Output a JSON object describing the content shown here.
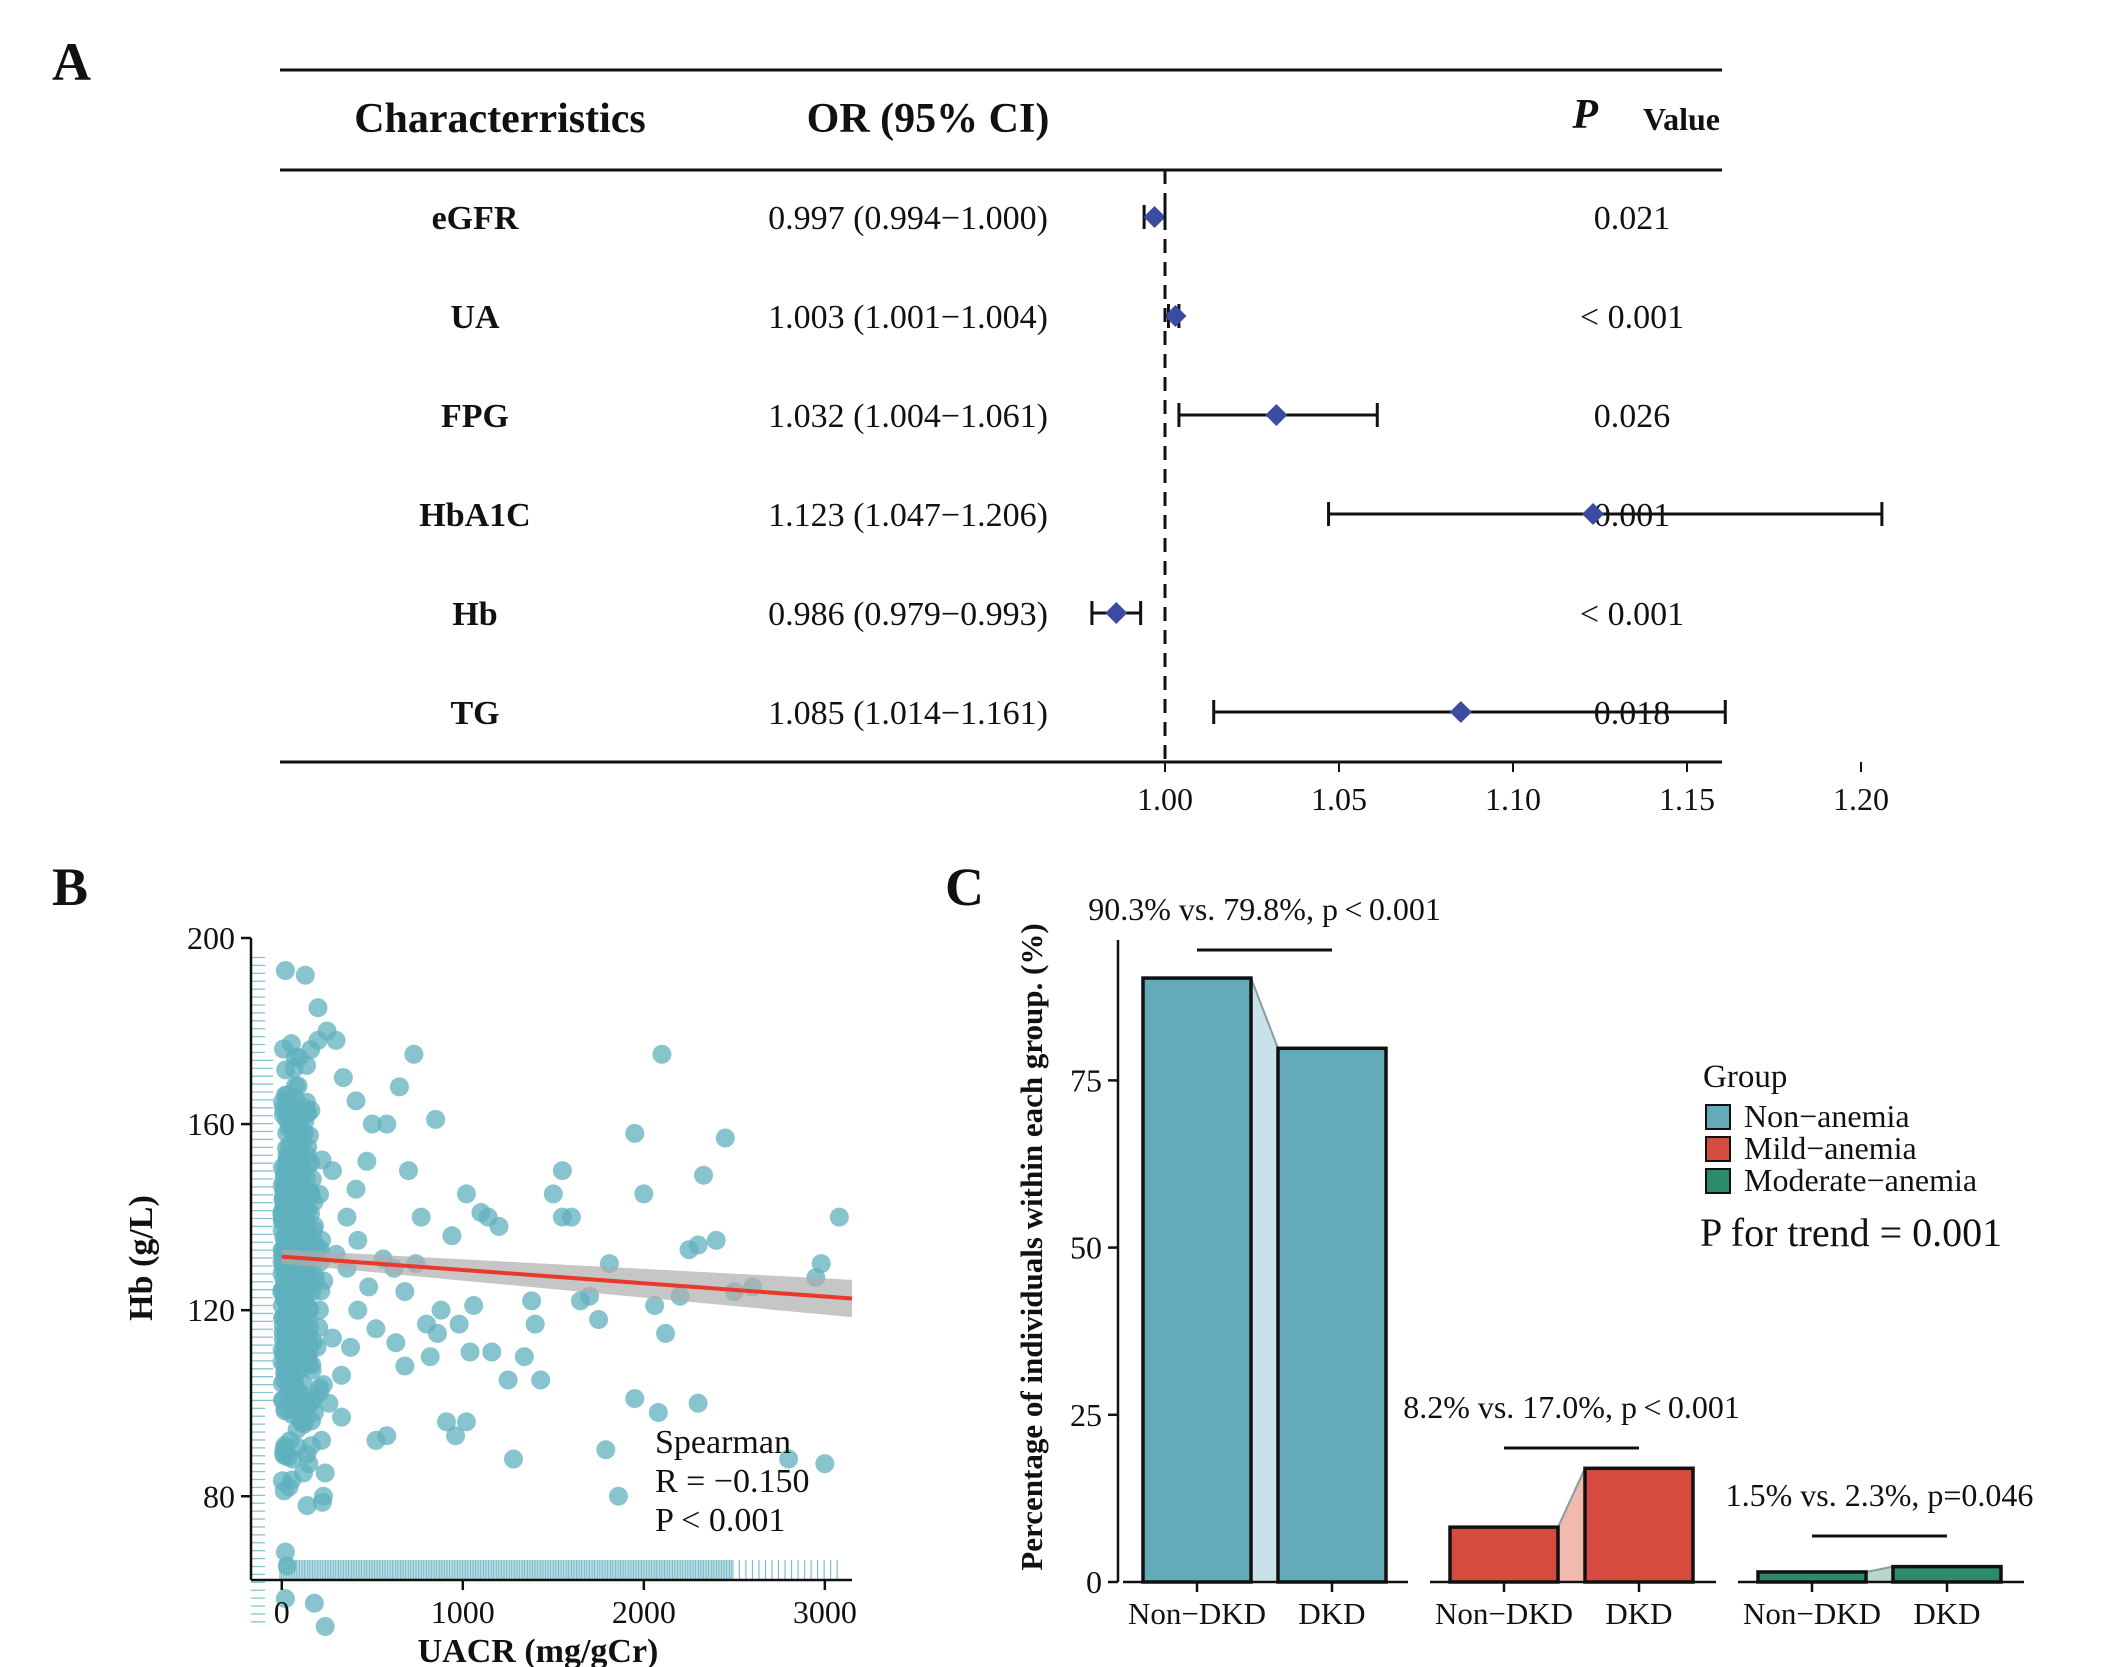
{
  "panels": {
    "a": "A",
    "b": "B",
    "c": "C"
  },
  "colors": {
    "axis": "#111111",
    "diamond": "#3B4BA0",
    "scatter": "#5FB0BE",
    "fit_line": "#E8392B",
    "ci_band": "#AEAEAE",
    "non_anemia": "#63ABBA",
    "mild_anemia": "#D64B3F",
    "moderate_anemia": "#2E8B6A",
    "connector_non": "#C9E1E8",
    "connector_mild": "#F2B9AE",
    "connector_mod": "#B9D6C8"
  },
  "chart_data": [
    {
      "type": "forest",
      "headers": {
        "characteristics": "Characterristics",
        "or": "OR (95% CI)",
        "p_italic": "P",
        "p_rest": "Value"
      },
      "reference_line": 1.0,
      "xlim": [
        0.97,
        1.245
      ],
      "x_ticks": [
        1.0,
        1.05,
        1.1,
        1.15,
        1.2
      ],
      "x_tick_labels": [
        "1.00",
        "1.05",
        "1.10",
        "1.15",
        "1.20"
      ],
      "rows": [
        {
          "name": "eGFR",
          "or_text": "0.997 (0.994−1.000)",
          "or": 0.997,
          "lo": 0.994,
          "hi": 1.0,
          "p": "0.021"
        },
        {
          "name": "UA",
          "or_text": "1.003 (1.001−1.004)",
          "or": 1.003,
          "lo": 1.001,
          "hi": 1.004,
          "p": "< 0.001"
        },
        {
          "name": "FPG",
          "or_text": "1.032 (1.004−1.061)",
          "or": 1.032,
          "lo": 1.004,
          "hi": 1.061,
          "p": "0.026"
        },
        {
          "name": "HbA1C",
          "or_text": "1.123 (1.047−1.206)",
          "or": 1.123,
          "lo": 1.047,
          "hi": 1.206,
          "p": "0.001"
        },
        {
          "name": "Hb",
          "or_text": "0.986 (0.979−0.993)",
          "or": 0.986,
          "lo": 0.979,
          "hi": 0.993,
          "p": "< 0.001"
        },
        {
          "name": "TG",
          "or_text": "1.085 (1.014−1.161)",
          "or": 1.085,
          "lo": 1.014,
          "hi": 1.161,
          "p": "0.018"
        }
      ]
    },
    {
      "type": "scatter",
      "xlabel": "UACR (mg/gCr)",
      "ylabel": "Hb (g/L)",
      "xlim": [
        -170,
        3150
      ],
      "ylim": [
        62,
        200
      ],
      "x_ticks": [
        0,
        1000,
        2000,
        3000
      ],
      "y_ticks": [
        80,
        120,
        160,
        200
      ],
      "fit": {
        "x": [
          0,
          3150
        ],
        "y": [
          131.5,
          122.5
        ],
        "ci_start": 1.5,
        "ci_end": 4.0
      },
      "annotation": {
        "line1": "Spearman",
        "line2": "R = −0.150",
        "line3": "P <  0.001"
      },
      "points": [
        [
          1200,
          138
        ],
        [
          1500,
          145
        ],
        [
          1550,
          140
        ],
        [
          1750,
          118
        ],
        [
          1810,
          130
        ],
        [
          1950,
          158
        ],
        [
          2000,
          145
        ],
        [
          1950,
          101
        ],
        [
          2080,
          98
        ],
        [
          2100,
          175
        ],
        [
          2250,
          133
        ],
        [
          2300,
          134
        ],
        [
          2330,
          149
        ],
        [
          2400,
          135
        ],
        [
          2450,
          157
        ],
        [
          2300,
          100
        ],
        [
          2800,
          88
        ],
        [
          3000,
          87
        ],
        [
          3080,
          140
        ],
        [
          2980,
          130
        ],
        [
          2950,
          127
        ],
        [
          2600,
          125
        ],
        [
          1790,
          90
        ],
        [
          1860,
          80
        ],
        [
          2120,
          115
        ],
        [
          2060,
          121
        ],
        [
          1650,
          122
        ],
        [
          1550,
          150
        ],
        [
          1400,
          117
        ],
        [
          1380,
          122
        ],
        [
          1280,
          88
        ],
        [
          1250,
          105
        ],
        [
          1100,
          141
        ],
        [
          1140,
          140
        ],
        [
          1020,
          96
        ],
        [
          960,
          93
        ],
        [
          910,
          96
        ],
        [
          860,
          115
        ],
        [
          820,
          110
        ],
        [
          770,
          140
        ],
        [
          730,
          175
        ],
        [
          680,
          108
        ],
        [
          630,
          113
        ],
        [
          580,
          93
        ],
        [
          520,
          92
        ],
        [
          480,
          125
        ],
        [
          410,
          165
        ],
        [
          940,
          136
        ],
        [
          1040,
          111
        ],
        [
          1340,
          110
        ],
        [
          1430,
          105
        ],
        [
          1600,
          140
        ],
        [
          1700,
          123
        ],
        [
          2200,
          123
        ],
        [
          2500,
          124
        ],
        [
          1020,
          145
        ],
        [
          850,
          161
        ],
        [
          580,
          160
        ],
        [
          650,
          168
        ],
        [
          700,
          150
        ],
        [
          300,
          178
        ],
        [
          250,
          180
        ],
        [
          200,
          185
        ],
        [
          160,
          176
        ],
        [
          130,
          192
        ],
        [
          20,
          193
        ],
        [
          200,
          178
        ],
        [
          340,
          170
        ],
        [
          410,
          146
        ],
        [
          470,
          152
        ],
        [
          500,
          160
        ],
        [
          300,
          132
        ],
        [
          360,
          129
        ],
        [
          420,
          120
        ],
        [
          520,
          116
        ],
        [
          380,
          112
        ],
        [
          280,
          114
        ],
        [
          330,
          106
        ],
        [
          230,
          104
        ],
        [
          260,
          100
        ],
        [
          330,
          97
        ],
        [
          180,
          98
        ],
        [
          220,
          92
        ],
        [
          150,
          87
        ],
        [
          120,
          85
        ],
        [
          240,
          85
        ],
        [
          230,
          80
        ],
        [
          140,
          78
        ],
        [
          60,
          88
        ],
        [
          20,
          68
        ],
        [
          30,
          65
        ],
        [
          20,
          58
        ],
        [
          180,
          57
        ],
        [
          240,
          52
        ],
        [
          40,
          82
        ],
        [
          100,
          140
        ],
        [
          160,
          145
        ],
        [
          220,
          135
        ],
        [
          280,
          150
        ],
        [
          360,
          140
        ],
        [
          420,
          135
        ],
        [
          560,
          131
        ],
        [
          620,
          129
        ],
        [
          680,
          124
        ],
        [
          740,
          130
        ],
        [
          800,
          117
        ],
        [
          880,
          120
        ],
        [
          980,
          117
        ],
        [
          1060,
          121
        ],
        [
          1160,
          111
        ]
      ]
    },
    {
      "type": "bar",
      "ylabel": "Percentage of individuals within each group. (%)",
      "ylim": [
        0,
        93
      ],
      "y_ticks": [
        0,
        25,
        50,
        75
      ],
      "categories": [
        "Non−DKD",
        "DKD"
      ],
      "legend": {
        "title": "Group",
        "items": [
          "Non−anemia",
          "Mild−anemia",
          "Moderate−anemia"
        ],
        "trend": "P for trend = 0.001",
        "placement": "right"
      },
      "series": [
        {
          "name": "Non−anemia",
          "values": [
            90.3,
            79.8
          ],
          "annotation": "90.3% vs. 79.8%, p < 0.001"
        },
        {
          "name": "Mild−anemia",
          "values": [
            8.2,
            17.0
          ],
          "annotation": "8.2% vs. 17.0%, p < 0.001"
        },
        {
          "name": "Moderate−anemia",
          "values": [
            1.5,
            2.3
          ],
          "annotation": "1.5% vs. 2.3%, p=0.046"
        }
      ]
    }
  ]
}
